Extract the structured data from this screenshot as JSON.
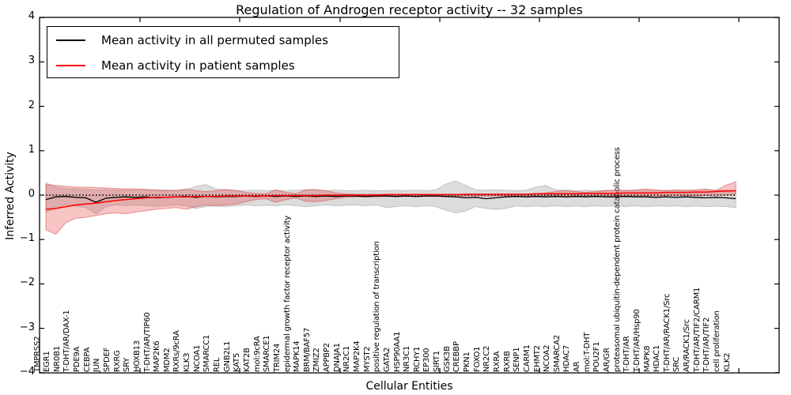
{
  "title": "Regulation of Androgen receptor activity -- 32 samples",
  "axes": {
    "ylabel": "Inferred Activity",
    "xlabel": "Cellular Entities",
    "yticks": [
      4,
      3,
      2,
      1,
      0,
      -1,
      -2,
      -3,
      -4
    ]
  },
  "legend": {
    "entries": [
      {
        "label": "Mean activity in all permuted samples",
        "color": "#000000"
      },
      {
        "label": "Mean activity in patient samples",
        "color": "#ff0000"
      }
    ]
  },
  "colors": {
    "permuted_line": "#000000",
    "patient_line": "#ff0000",
    "permuted_band": "rgba(130,130,130,0.28)",
    "permuted_band_edge": "rgba(120,120,120,0.35)",
    "patient_band": "rgba(235,75,75,0.33)",
    "patient_band_edge": "rgba(215,60,60,0.5)",
    "zero_line": "#000000",
    "axis": "#000000"
  },
  "chart_data": {
    "type": "line",
    "title": "Regulation of Androgen receptor activity -- 32 samples",
    "xlabel": "Cellular Entities",
    "ylabel": "Inferred Activity",
    "ylim": [
      -4,
      4
    ],
    "grid": false,
    "legend_position": "upper left",
    "zero_reference_line": true,
    "categories": [
      "TMPRSS2",
      "EGR1",
      "NR0B1",
      "T-DHT/AR/DAX-1",
      "PDE9A",
      "CEBPA",
      "JUN",
      "SPDEF",
      "RXRG",
      "SRY",
      "HOXB13",
      "T-DHT/AR/TIP60",
      "MAP2K6",
      "MDM2",
      "RXRs/9cRA",
      "KLK3",
      "NCOA1",
      "SMARCC1",
      "REL",
      "GNB2L1",
      "KAT5",
      "KAT2B",
      "mol:9cRA",
      "SMARCE1",
      "TRIM24",
      "epidermal growth factor receptor activity",
      "MAPK14",
      "BRM/BAF57",
      "ZMIZ2",
      "APPBP2",
      "DNAJA1",
      "NR2C1",
      "MAP2K4",
      "MYST2",
      "positive regulation of transcription",
      "GATA2",
      "HSP90AA1",
      "NR3C1",
      "RCHY1",
      "EP300",
      "SIRT1",
      "GSK3B",
      "CREBBP",
      "PKN1",
      "FOXO1",
      "NR2C2",
      "RXRA",
      "RXRB",
      "SENP1",
      "CARM1",
      "EHMT2",
      "NCOA2",
      "SMARCA2",
      "HDAC7",
      "AR",
      "mol:T-DHT",
      "POU2F1",
      "AR/GR",
      "proteasomal ubiquitin-dependent protein catabolic process",
      "T-DHT/AR",
      "T-DHT/AR/Hsp90",
      "MAPK8",
      "HDAC1",
      "T-DHT/AR/RACK1/Src",
      "SRC",
      "AR/RACK1/Src",
      "T-DHT/AR/TIF2/CARM1",
      "T-DHT/AR/TIF2",
      "cell proliferation",
      "KLK2"
    ],
    "series": [
      {
        "name": "Mean activity in all permuted samples",
        "values": [
          -0.1,
          -0.04,
          -0.03,
          -0.05,
          -0.06,
          -0.16,
          -0.07,
          -0.05,
          -0.04,
          -0.05,
          -0.04,
          -0.06,
          -0.05,
          -0.04,
          -0.03,
          -0.05,
          -0.03,
          -0.04,
          -0.03,
          -0.03,
          -0.02,
          -0.03,
          -0.02,
          -0.03,
          -0.02,
          -0.03,
          -0.02,
          -0.03,
          -0.02,
          -0.03,
          -0.02,
          -0.02,
          -0.03,
          -0.02,
          -0.02,
          -0.03,
          -0.02,
          -0.03,
          -0.02,
          -0.02,
          -0.03,
          -0.04,
          -0.06,
          -0.05,
          -0.08,
          -0.06,
          -0.04,
          -0.03,
          -0.04,
          -0.03,
          -0.04,
          -0.03,
          -0.04,
          -0.03,
          -0.04,
          -0.03,
          -0.04,
          -0.04,
          -0.03,
          -0.04,
          -0.04,
          -0.05,
          -0.04,
          -0.05,
          -0.04,
          -0.05,
          -0.06,
          -0.05,
          -0.06,
          -0.08
        ]
      },
      {
        "name": "Mean activity in patient samples",
        "values": [
          -0.32,
          -0.3,
          -0.26,
          -0.22,
          -0.2,
          -0.18,
          -0.15,
          -0.12,
          -0.1,
          -0.08,
          -0.06,
          -0.05,
          -0.05,
          -0.04,
          -0.04,
          -0.03,
          -0.03,
          -0.03,
          -0.02,
          -0.02,
          -0.02,
          -0.02,
          -0.02,
          -0.01,
          -0.01,
          -0.01,
          -0.01,
          -0.01,
          0.0,
          0.0,
          0.0,
          0.0,
          0.0,
          0.0,
          0.01,
          0.01,
          0.01,
          0.01,
          0.01,
          0.01,
          0.01,
          0.01,
          0.02,
          0.02,
          0.02,
          0.02,
          0.02,
          0.02,
          0.02,
          0.03,
          0.03,
          0.03,
          0.03,
          0.03,
          0.04,
          0.04,
          0.04,
          0.04,
          0.05,
          0.05,
          0.05,
          0.05,
          0.06,
          0.06,
          0.06,
          0.07,
          0.07,
          0.08,
          0.09,
          0.1
        ]
      }
    ],
    "bands": [
      {
        "name": "permuted samples activity range",
        "upper": [
          0.28,
          0.18,
          0.15,
          0.14,
          0.13,
          0.12,
          0.12,
          0.11,
          0.12,
          0.11,
          0.12,
          0.11,
          0.12,
          0.11,
          0.12,
          0.2,
          0.24,
          0.14,
          0.12,
          0.11,
          0.1,
          0.11,
          0.1,
          0.11,
          0.1,
          0.11,
          0.12,
          0.11,
          0.1,
          0.11,
          0.1,
          0.1,
          0.11,
          0.1,
          0.1,
          0.11,
          0.1,
          0.11,
          0.1,
          0.12,
          0.25,
          0.32,
          0.22,
          0.12,
          0.11,
          0.12,
          0.11,
          0.1,
          0.11,
          0.18,
          0.22,
          0.12,
          0.11,
          0.1,
          0.11,
          0.1,
          0.11,
          0.1,
          0.11,
          0.1,
          0.11,
          0.1,
          0.11,
          0.1,
          0.12,
          0.1,
          0.11,
          0.12,
          0.11,
          0.1
        ],
        "lower": [
          -0.38,
          -0.3,
          -0.22,
          -0.25,
          -0.28,
          -0.42,
          -0.26,
          -0.22,
          -0.24,
          -0.22,
          -0.24,
          -0.25,
          -0.24,
          -0.22,
          -0.24,
          -0.3,
          -0.26,
          -0.24,
          -0.26,
          -0.24,
          -0.22,
          -0.24,
          -0.23,
          -0.24,
          -0.22,
          -0.24,
          -0.26,
          -0.24,
          -0.22,
          -0.24,
          -0.23,
          -0.22,
          -0.24,
          -0.22,
          -0.28,
          -0.26,
          -0.24,
          -0.26,
          -0.24,
          -0.26,
          -0.34,
          -0.4,
          -0.36,
          -0.26,
          -0.3,
          -0.32,
          -0.3,
          -0.24,
          -0.26,
          -0.24,
          -0.26,
          -0.24,
          -0.26,
          -0.24,
          -0.26,
          -0.24,
          -0.25,
          -0.24,
          -0.26,
          -0.24,
          -0.26,
          -0.24,
          -0.25,
          -0.24,
          -0.26,
          -0.24,
          -0.26,
          -0.25,
          -0.26,
          -0.28
        ]
      },
      {
        "name": "patient samples activity range",
        "upper": [
          0.24,
          0.22,
          0.2,
          0.18,
          0.18,
          0.17,
          0.16,
          0.15,
          0.14,
          0.14,
          0.13,
          0.12,
          0.1,
          0.1,
          0.14,
          0.1,
          0.08,
          0.1,
          0.13,
          0.1,
          0.06,
          0.04,
          0.03,
          0.12,
          0.06,
          0.03,
          0.12,
          0.13,
          0.1,
          0.05,
          0.03,
          0.02,
          0.02,
          0.02,
          0.02,
          0.02,
          0.02,
          0.02,
          0.02,
          0.02,
          0.02,
          0.02,
          0.02,
          0.02,
          0.02,
          0.02,
          0.02,
          0.02,
          0.02,
          0.03,
          0.05,
          0.08,
          0.1,
          0.08,
          0.06,
          0.08,
          0.1,
          0.12,
          0.1,
          0.12,
          0.14,
          0.12,
          0.1,
          0.12,
          0.1,
          0.12,
          0.14,
          0.1,
          0.22,
          0.3
        ],
        "lower": [
          -0.78,
          -0.88,
          -0.62,
          -0.52,
          -0.5,
          -0.46,
          -0.42,
          -0.4,
          -0.42,
          -0.38,
          -0.35,
          -0.32,
          -0.3,
          -0.28,
          -0.32,
          -0.26,
          -0.22,
          -0.24,
          -0.22,
          -0.2,
          -0.15,
          -0.1,
          -0.08,
          -0.16,
          -0.1,
          -0.06,
          -0.14,
          -0.15,
          -0.12,
          -0.08,
          -0.05,
          -0.04,
          -0.04,
          -0.04,
          -0.03,
          -0.03,
          -0.03,
          -0.03,
          -0.03,
          -0.03,
          -0.03,
          -0.03,
          -0.02,
          -0.02,
          -0.02,
          -0.02,
          -0.02,
          -0.02,
          -0.02,
          -0.02,
          -0.02,
          -0.02,
          -0.03,
          -0.02,
          -0.02,
          -0.02,
          -0.02,
          -0.02,
          -0.02,
          -0.02,
          -0.02,
          -0.02,
          -0.01,
          -0.01,
          -0.01,
          -0.01,
          -0.01,
          0.0,
          0.0,
          0.02
        ]
      }
    ]
  }
}
